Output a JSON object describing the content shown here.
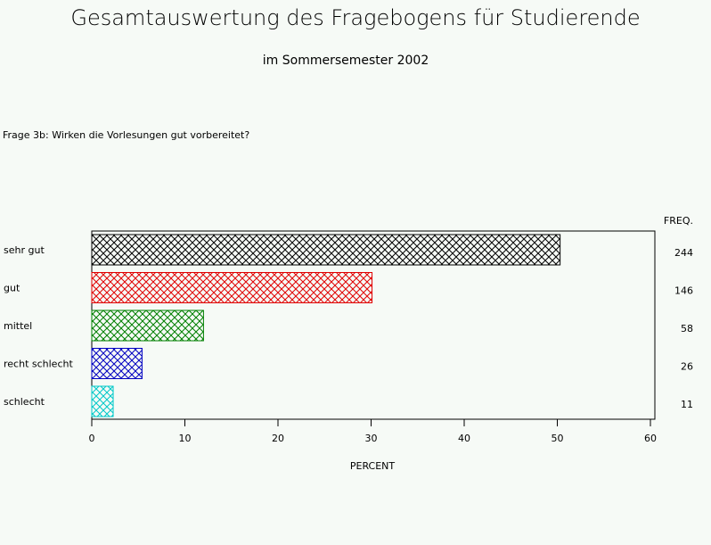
{
  "chart_data": {
    "type": "hbar",
    "title": "Gesamtauswertung des Fragebogens für Studierende",
    "subtitle": "im Sommersemester 2002",
    "question": "Frage 3b: Wirken die Vorlesungen gut vorbereitet?",
    "categories": [
      "sehr gut",
      "gut",
      "mittel",
      "recht schlecht",
      "schlecht"
    ],
    "values": [
      50.3,
      30.1,
      12.0,
      5.4,
      2.3
    ],
    "colors": [
      "#000000",
      "#e00000",
      "#008000",
      "#0000c0",
      "#00c8c8"
    ],
    "freq_label": "FREQ.",
    "freq": [
      244,
      146,
      58,
      26,
      11
    ],
    "xlabel": "PERCENT",
    "xlim": [
      0,
      60
    ],
    "xticks": [
      0,
      10,
      20,
      30,
      40,
      50,
      60
    ]
  }
}
